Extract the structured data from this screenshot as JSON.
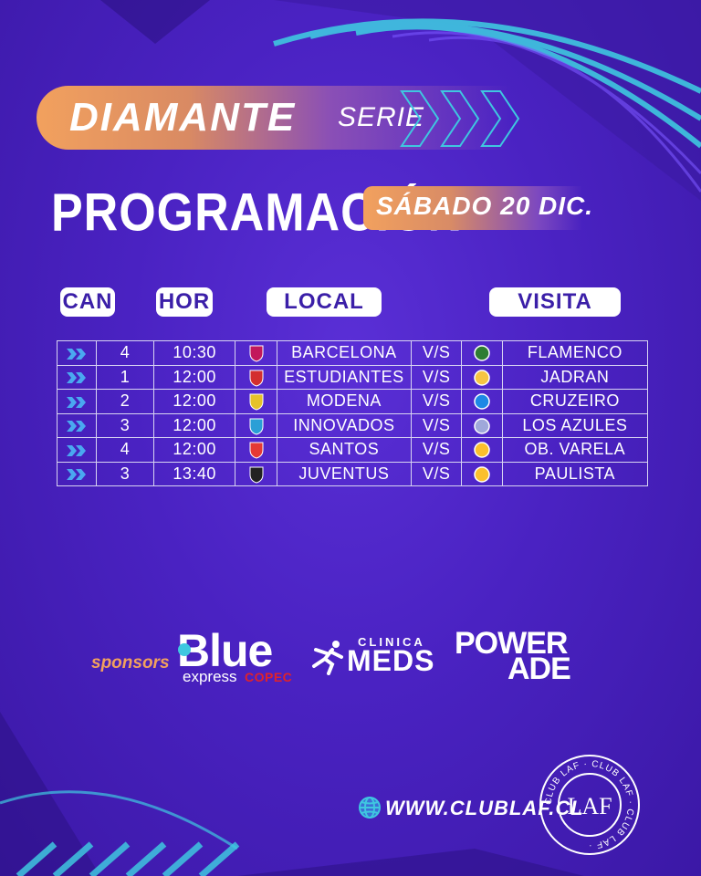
{
  "header": {
    "title": "DIAMANTE",
    "serie_label": "SERIE",
    "heading": "PROGRAMACIÓN",
    "date": "SÁBADO 20 DIC."
  },
  "columns": {
    "can": "CAN",
    "hor": "HOR",
    "local": "LOCAL",
    "visita": "VISITA"
  },
  "matches": [
    {
      "can": "4",
      "hor": "10:30",
      "local": "BARCELONA",
      "vs": "V/S",
      "visita": "FLAMENCO"
    },
    {
      "can": "1",
      "hor": "12:00",
      "local": "ESTUDIANTES",
      "vs": "V/S",
      "visita": "JADRAN"
    },
    {
      "can": "2",
      "hor": "12:00",
      "local": "MODENA",
      "vs": "V/S",
      "visita": "CRUZEIRO"
    },
    {
      "can": "3",
      "hor": "12:00",
      "local": "INNOVADOS",
      "vs": "V/S",
      "visita": "LOS AZULES"
    },
    {
      "can": "4",
      "hor": "12:00",
      "local": "SANTOS",
      "vs": "V/S",
      "visita": "OB. VARELA"
    },
    {
      "can": "3",
      "hor": "13:40",
      "local": "JUVENTUS",
      "vs": "V/S",
      "visita": "PAULISTA"
    }
  ],
  "sponsors": {
    "label": "sponsors",
    "blue": "Blue",
    "express": "express",
    "copec": "COPEC",
    "clinica": "CLINICA",
    "meds": "MEDS",
    "power": "POWER",
    "ade": "ADE"
  },
  "footer": {
    "website": "WWW.CLUBLAF.CL",
    "seal_text": "CLUB LAF · CLUB LAF · CLUB LAF ·",
    "seal_letters": "LAF"
  },
  "colors": {
    "background": "#4a22c2",
    "accent_orange": "#f2a15e",
    "accent_cyan": "#3fc7e0",
    "header_text": "#3b1fa8"
  }
}
